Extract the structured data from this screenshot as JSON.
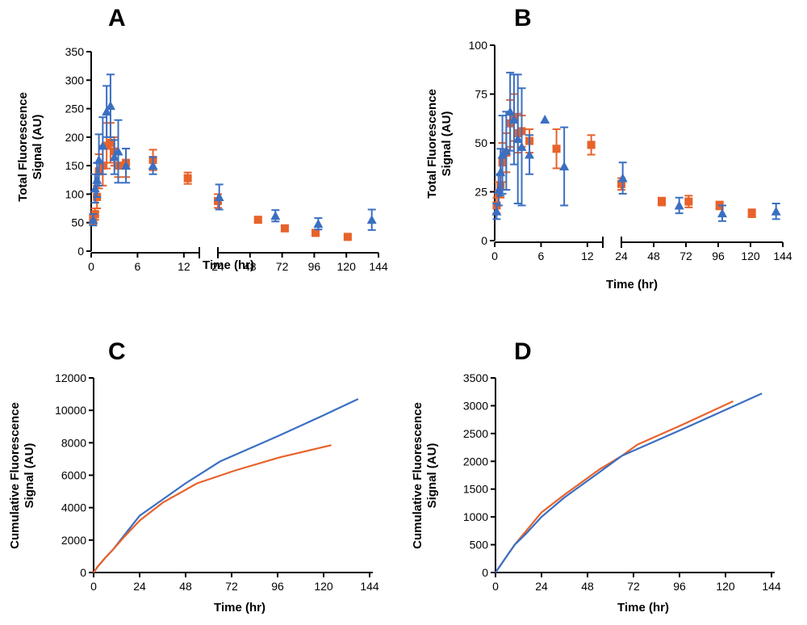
{
  "colors": {
    "orange": "#e8622a",
    "blue": "#3a6fc2",
    "axis": "#000000"
  },
  "chart_data": [
    {
      "panel": "A",
      "type": "scatter",
      "xlabel": "Time (hr)",
      "ylabel_lines": [
        "Total Fluorescence",
        "Signal (AU)"
      ],
      "ylim": [
        0,
        350
      ],
      "y_ticks": [
        0,
        50,
        100,
        150,
        200,
        250,
        300,
        350
      ],
      "broken_x_axis": true,
      "x_segments": [
        {
          "range": [
            0,
            14
          ],
          "ticks": [
            0,
            6,
            12
          ]
        },
        {
          "range": [
            24,
            144
          ],
          "ticks": [
            24,
            48,
            72,
            96,
            120,
            144
          ]
        }
      ],
      "series": [
        {
          "name": "orange",
          "marker": "square",
          "color": "#e8622a",
          "points": [
            {
              "x": 0.25,
              "y": 55,
              "err": 8
            },
            {
              "x": 0.5,
              "y": 65,
              "err": 10
            },
            {
              "x": 0.75,
              "y": 95,
              "err": 20
            },
            {
              "x": 1,
              "y": 140,
              "err": 30
            },
            {
              "x": 1.5,
              "y": 150,
              "err": 35
            },
            {
              "x": 2,
              "y": 185,
              "err": 40
            },
            {
              "x": 2.5,
              "y": 190,
              "err": 35
            },
            {
              "x": 3,
              "y": 175,
              "err": 25
            },
            {
              "x": 3.5,
              "y": 150,
              "err": 20
            },
            {
              "x": 4.5,
              "y": 155,
              "err": 25
            },
            {
              "x": 8,
              "y": 160,
              "err": 18
            },
            {
              "x": 12.5,
              "y": 128,
              "err": 10
            },
            {
              "x": 24,
              "y": 88,
              "err": 12
            },
            {
              "x": 54,
              "y": 55,
              "err": 4
            },
            {
              "x": 74,
              "y": 40,
              "err": 4
            },
            {
              "x": 97,
              "y": 32,
              "err": 4
            },
            {
              "x": 121,
              "y": 25,
              "err": 3
            }
          ]
        },
        {
          "name": "blue",
          "marker": "triangle",
          "color": "#3a6fc2",
          "points": [
            {
              "x": 0.25,
              "y": 55,
              "err": 10
            },
            {
              "x": 0.5,
              "y": 110,
              "err": 25
            },
            {
              "x": 0.75,
              "y": 125,
              "err": 30
            },
            {
              "x": 1,
              "y": 160,
              "err": 45
            },
            {
              "x": 1.5,
              "y": 185,
              "err": 50
            },
            {
              "x": 2,
              "y": 245,
              "err": 45
            },
            {
              "x": 2.5,
              "y": 255,
              "err": 55
            },
            {
              "x": 3,
              "y": 165,
              "err": 30
            },
            {
              "x": 3.5,
              "y": 175,
              "err": 55
            },
            {
              "x": 4.5,
              "y": 150,
              "err": 30
            },
            {
              "x": 8,
              "y": 150,
              "err": 15
            },
            {
              "x": 25,
              "y": 95,
              "err": 22
            },
            {
              "x": 67,
              "y": 62,
              "err": 10
            },
            {
              "x": 99,
              "y": 48,
              "err": 10
            },
            {
              "x": 139,
              "y": 55,
              "err": 18
            }
          ]
        }
      ]
    },
    {
      "panel": "B",
      "type": "scatter",
      "xlabel": "Time (hr)",
      "ylabel_lines": [
        "Total Fluorescence",
        "Signal (AU)"
      ],
      "ylim": [
        0,
        100
      ],
      "y_ticks": [
        0,
        25,
        50,
        75,
        100
      ],
      "broken_x_axis": true,
      "x_segments": [
        {
          "range": [
            0,
            14
          ],
          "ticks": [
            0,
            6,
            12
          ]
        },
        {
          "range": [
            24,
            144
          ],
          "ticks": [
            24,
            48,
            72,
            96,
            120,
            144
          ]
        }
      ],
      "series": [
        {
          "name": "orange",
          "marker": "square",
          "color": "#e8622a",
          "points": [
            {
              "x": 0.25,
              "y": 18,
              "err": 4
            },
            {
              "x": 0.5,
              "y": 24,
              "err": 6
            },
            {
              "x": 0.75,
              "y": 28,
              "err": 6
            },
            {
              "x": 1,
              "y": 40,
              "err": 10
            },
            {
              "x": 1.5,
              "y": 45,
              "err": 10
            },
            {
              "x": 2,
              "y": 60,
              "err": 12
            },
            {
              "x": 2.5,
              "y": 63,
              "err": 12
            },
            {
              "x": 3,
              "y": 55,
              "err": 10
            },
            {
              "x": 3.5,
              "y": 56,
              "err": 8
            },
            {
              "x": 4.5,
              "y": 51,
              "err": 6
            },
            {
              "x": 8,
              "y": 47,
              "err": 10
            },
            {
              "x": 12.5,
              "y": 49,
              "err": 5
            },
            {
              "x": 24,
              "y": 29,
              "err": 3
            },
            {
              "x": 54,
              "y": 20,
              "err": 2
            },
            {
              "x": 74,
              "y": 20,
              "err": 3
            },
            {
              "x": 97,
              "y": 18,
              "err": 2
            },
            {
              "x": 121,
              "y": 14,
              "err": 2
            }
          ]
        },
        {
          "name": "blue",
          "marker": "triangle",
          "color": "#3a6fc2",
          "points": [
            {
              "x": 0.25,
              "y": 15,
              "err": 4
            },
            {
              "x": 0.5,
              "y": 26,
              "err": 8
            },
            {
              "x": 0.75,
              "y": 35,
              "err": 12
            },
            {
              "x": 1,
              "y": 44,
              "err": 20
            },
            {
              "x": 1.5,
              "y": 46,
              "err": 20
            },
            {
              "x": 2,
              "y": 66,
              "err": 20
            },
            {
              "x": 2.5,
              "y": 62,
              "err": 23
            },
            {
              "x": 3,
              "y": 52,
              "err": 33
            },
            {
              "x": 3.5,
              "y": 48,
              "err": 30
            },
            {
              "x": 4.5,
              "y": 44,
              "err": 10
            },
            {
              "x": 6.5,
              "y": 62,
              "err": 0
            },
            {
              "x": 9,
              "y": 38,
              "err": 20
            },
            {
              "x": 25,
              "y": 32,
              "err": 8
            },
            {
              "x": 67,
              "y": 18,
              "err": 4
            },
            {
              "x": 99,
              "y": 14,
              "err": 4
            },
            {
              "x": 139,
              "y": 15,
              "err": 4
            }
          ]
        }
      ]
    },
    {
      "panel": "C",
      "type": "line",
      "xlabel": "Time (hr)",
      "ylabel_lines": [
        "Cumulative Fluorescence",
        "Signal (AU)"
      ],
      "xlim": [
        0,
        144
      ],
      "ylim": [
        0,
        12000
      ],
      "x_ticks": [
        0,
        24,
        48,
        72,
        96,
        120,
        144
      ],
      "y_ticks": [
        0,
        2000,
        4000,
        6000,
        8000,
        10000,
        12000
      ],
      "series": [
        {
          "name": "blue",
          "color": "#3a6fc2",
          "x": [
            0,
            2,
            6,
            10,
            16,
            24,
            36,
            48,
            66,
            96,
            120,
            138
          ],
          "y": [
            0,
            350,
            900,
            1400,
            2300,
            3500,
            4500,
            5500,
            6850,
            8400,
            9700,
            10700
          ]
        },
        {
          "name": "orange",
          "color": "#e8622a",
          "x": [
            0,
            2,
            6,
            10,
            16,
            24,
            36,
            54,
            74,
            97,
            124
          ],
          "y": [
            0,
            350,
            900,
            1400,
            2200,
            3200,
            4300,
            5500,
            6300,
            7100,
            7850
          ]
        }
      ]
    },
    {
      "panel": "D",
      "type": "line",
      "xlabel": "Time (hr)",
      "ylabel_lines": [
        "Cumulative Fluorescence",
        "Signal (AU)"
      ],
      "xlim": [
        0,
        144
      ],
      "ylim": [
        0,
        3500
      ],
      "x_ticks": [
        0,
        24,
        48,
        72,
        96,
        120,
        144
      ],
      "y_ticks": [
        0,
        500,
        1000,
        1500,
        2000,
        2500,
        3000,
        3500
      ],
      "series": [
        {
          "name": "orange",
          "color": "#e8622a",
          "x": [
            0,
            2,
            6,
            10,
            16,
            24,
            36,
            54,
            66,
            74,
            97,
            124
          ],
          "y": [
            0,
            100,
            300,
            500,
            750,
            1080,
            1400,
            1850,
            2100,
            2300,
            2650,
            3080
          ]
        },
        {
          "name": "blue",
          "color": "#3a6fc2",
          "x": [
            0,
            2,
            6,
            10,
            16,
            24,
            36,
            54,
            66,
            99,
            139
          ],
          "y": [
            0,
            100,
            300,
            500,
            700,
            1000,
            1350,
            1800,
            2100,
            2600,
            3220
          ]
        }
      ]
    }
  ]
}
